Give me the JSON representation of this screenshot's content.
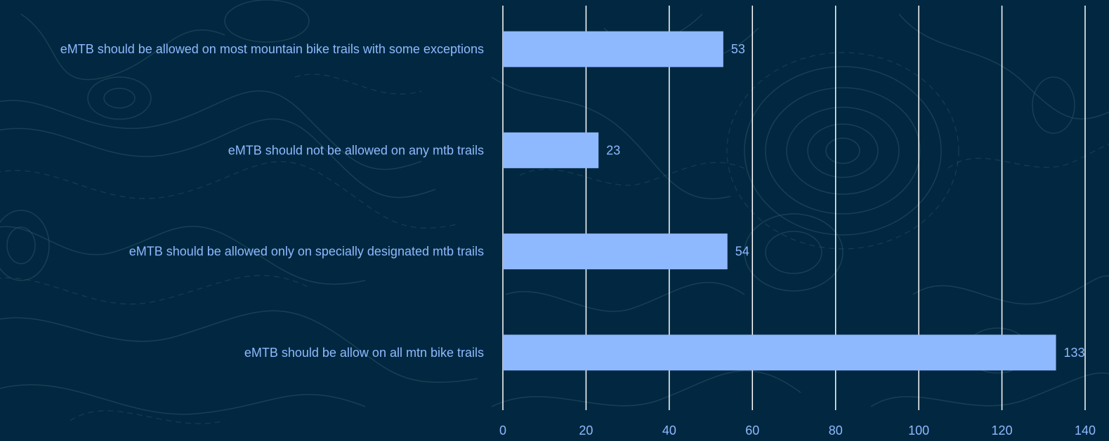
{
  "chart_data": {
    "type": "bar",
    "orientation": "horizontal",
    "categories": [
      "eMTB should be allowed on most mountain bike trails with some exceptions",
      "eMTB should not be allowed on any mtb trails",
      "eMTB should be allowed only on specially designated mtb trails",
      "eMTB should be allow on all mtn bike trails"
    ],
    "values": [
      53,
      23,
      54,
      133
    ],
    "xlim": [
      0,
      140
    ],
    "xticks": [
      "0",
      "20",
      "40",
      "60",
      "80",
      "100",
      "120",
      "140"
    ],
    "grid": "vertical",
    "legend": "none",
    "bar_color": "#8fb9ff",
    "background_color": "#012840",
    "gridline_color": "#ffffff"
  }
}
